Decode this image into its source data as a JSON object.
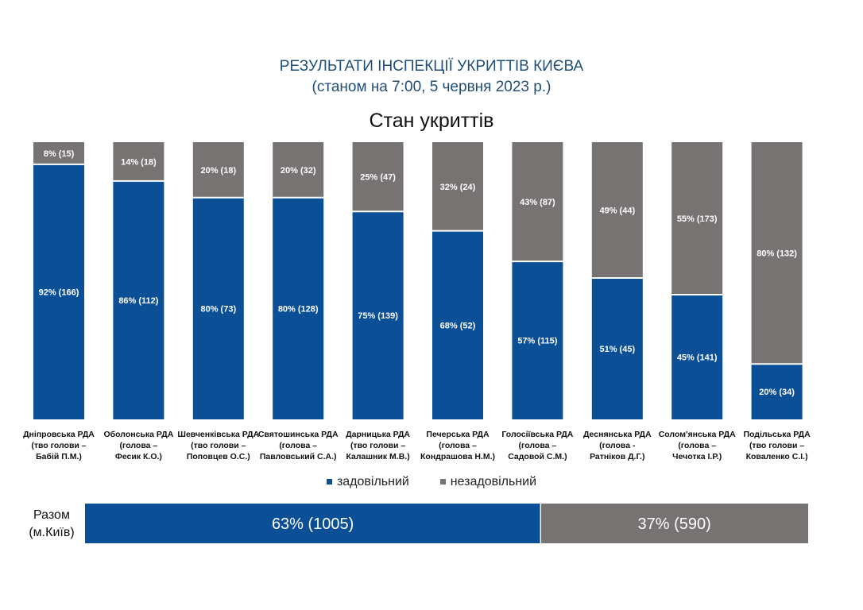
{
  "title": "РЕЗУЛЬТАТИ ІНСПЕКЦІЇ УКРИТТІВ КИЄВА",
  "subtitle": "(станом на 7:00, 5 червня 2023 р.)",
  "chart_data": [
    {
      "type": "bar",
      "stacked": "percent",
      "title": "Стан укриттів",
      "categories": [
        [
          "Дніпровська РДА",
          "(тво голови –",
          "Бабій П.М.)"
        ],
        [
          "Оболонська РДА",
          "(голова –",
          "Фесик К.О.)"
        ],
        [
          "Шевченківська РДА",
          "(тво голови –",
          "Поповцев О.С.)"
        ],
        [
          "Святошинська РДА",
          "(голова –",
          "Павловський С.А.)"
        ],
        [
          "Дарницька РДА",
          "(тво голови –",
          "Калашник М.В.)"
        ],
        [
          "Печерська РДА",
          "(голова –",
          "Кондрашова Н.М.)"
        ],
        [
          "Голосіївська РДА",
          "(голова –",
          "Садовой С.М.)"
        ],
        [
          "Деснянська РДА",
          "(голова -",
          "Ратніков Д.Г.)"
        ],
        [
          "Солом'янська РДА",
          "(голова –",
          "Чечотка І.Р.)"
        ],
        [
          "Подільська РДА",
          "(тво голови –",
          "Коваленко С.І.)"
        ]
      ],
      "series": [
        {
          "name": "задовільний",
          "color": "#0b4f96",
          "percent": [
            92,
            86,
            80,
            80,
            75,
            68,
            57,
            51,
            45,
            20
          ],
          "count": [
            166,
            112,
            73,
            128,
            139,
            52,
            115,
            45,
            141,
            34
          ],
          "labels": [
            "92% (166)",
            "86% (112)",
            "80% (73)",
            "80% (128)",
            "75% (139)",
            "68% (52)",
            "57% (115)",
            "51% (45)",
            "45% (141)",
            "20% (34)"
          ]
        },
        {
          "name": "незадовільний",
          "color": "#777372",
          "percent": [
            8,
            14,
            20,
            20,
            25,
            32,
            43,
            49,
            55,
            80
          ],
          "count": [
            15,
            18,
            18,
            32,
            47,
            24,
            87,
            44,
            173,
            132
          ],
          "labels": [
            "8% (15)",
            "14% (18)",
            "20% (18)",
            "20% (32)",
            "25% (47)",
            "32% (24)",
            "43% (87)",
            "49% (44)",
            "55% (173)",
            "80% (132)"
          ]
        }
      ],
      "legend": "bottom"
    },
    {
      "type": "bar",
      "orientation": "horizontal",
      "stacked": "percent",
      "category": [
        "Разом",
        "(м.Київ)"
      ],
      "values": [
        {
          "percent": 63,
          "count": 1005,
          "label": "63% (1005)"
        },
        {
          "percent": 37,
          "count": 590,
          "label": "37% (590)"
        }
      ]
    }
  ]
}
